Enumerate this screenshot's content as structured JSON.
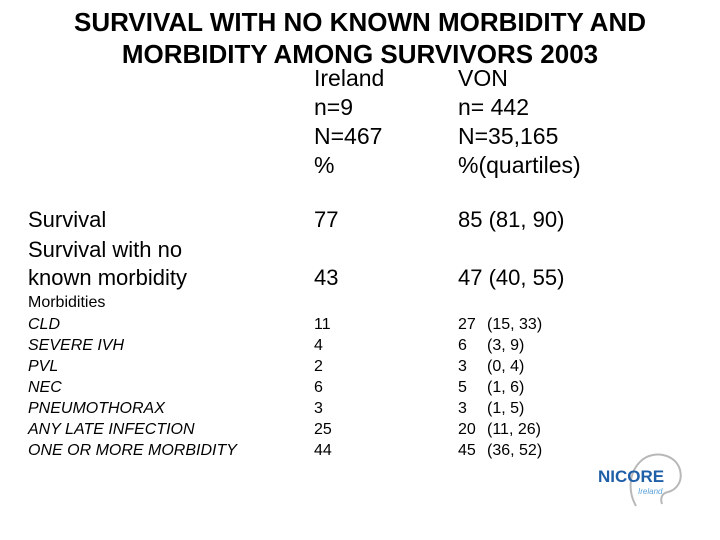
{
  "title": {
    "line1": "SURVIVAL WITH NO KNOWN MORBIDITY AND",
    "line2": "MORBIDITY AMONG SURVIVORS 2003"
  },
  "columns": {
    "ireland": {
      "name": "Ireland",
      "n": "n=9",
      "N": "N=467",
      "unit": "%"
    },
    "von": {
      "name": "VON",
      "n": "n= 442",
      "N": "N=35,165",
      "unit": "%(quartiles)"
    }
  },
  "survival": {
    "label": "Survival",
    "ireland": "77",
    "von": "85 (81, 90)"
  },
  "survival_no_morbidity": {
    "label_line1": "Survival with no",
    "label_line2": "known morbidity",
    "ireland": "43",
    "von": "47 (40, 55)"
  },
  "morbidities_heading": "Morbidities",
  "morbidities": [
    {
      "label": "CLD",
      "ireland": "11",
      "von": "27",
      "q": "(15, 33)"
    },
    {
      "label": "SEVERE IVH",
      "ireland": "4",
      "von": "6",
      "q": "(3, 9)"
    },
    {
      "label": "PVL",
      "ireland": "2",
      "von": "3",
      "q": "(0, 4)"
    },
    {
      "label": "NEC",
      "ireland": "6",
      "von": "5",
      "q": "(1, 6)"
    },
    {
      "label": "PNEUMOTHORAX",
      "ireland": "3",
      "von": "3",
      "q": "(1, 5)"
    },
    {
      "label": "ANY LATE INFECTION",
      "ireland": "25",
      "von": "20",
      "q": "(11, 26)"
    },
    {
      "label": "ONE OR MORE MORBIDITY",
      "ireland": "44",
      "von": "45",
      "q": "(36, 52)"
    }
  ],
  "logo": {
    "name": "NICORE",
    "sub": "Ireland",
    "colors": {
      "main": "#1f5fa8",
      "accent": "#5aa0d8"
    }
  }
}
